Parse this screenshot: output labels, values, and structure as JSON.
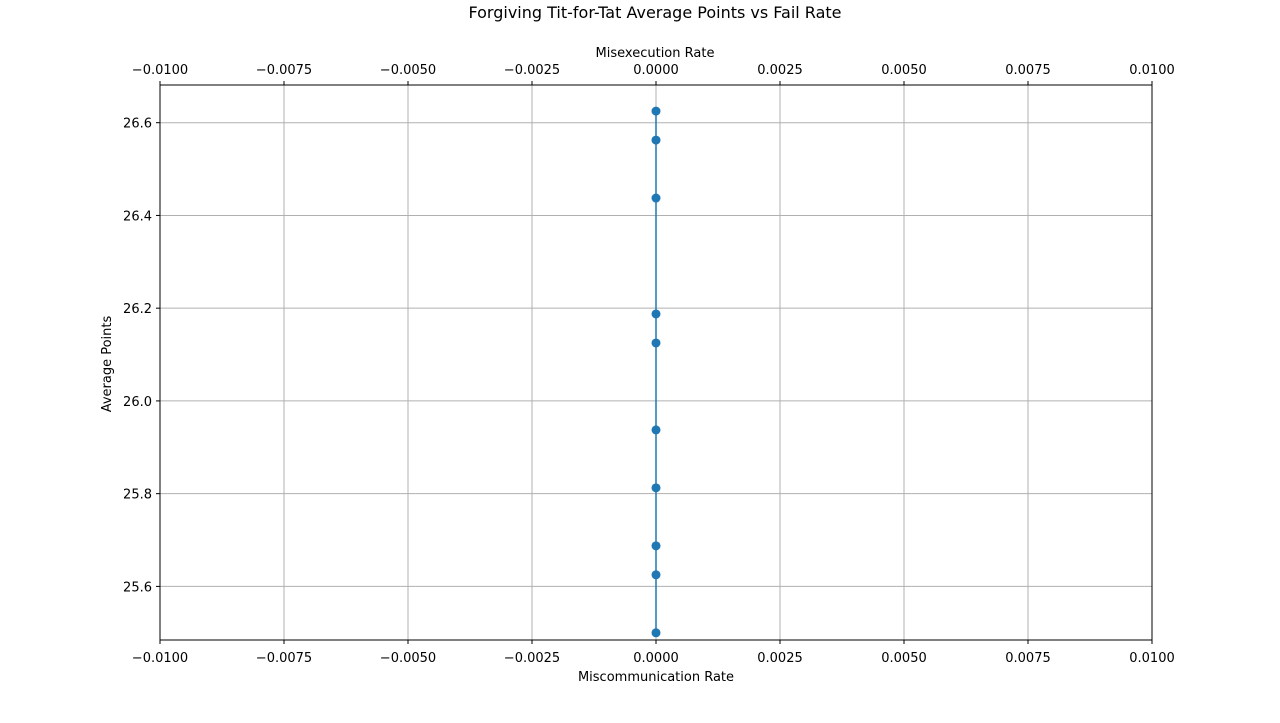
{
  "chart_data": {
    "type": "scatter",
    "title": "Forgiving Tit-for-Tat Average Points vs Fail Rate",
    "xlabel": "Miscommunication Rate",
    "x2label": "Misexecution Rate",
    "ylabel": "Average Points",
    "xlim": [
      -0.01,
      0.01
    ],
    "ylim": [
      25.4844,
      26.6813
    ],
    "xticks": [
      -0.01,
      -0.0075,
      -0.005,
      -0.0025,
      0.0,
      0.0025,
      0.005,
      0.0075,
      0.01
    ],
    "xtick_labels": [
      "−0.0100",
      "−0.0075",
      "−0.0050",
      "−0.0025",
      "0.0000",
      "0.0025",
      "0.0050",
      "0.0075",
      "0.0100"
    ],
    "yticks": [
      25.6,
      25.8,
      26.0,
      26.2,
      26.4,
      26.6
    ],
    "ytick_labels": [
      "25.6",
      "25.8",
      "26.0",
      "26.2",
      "26.4",
      "26.6"
    ],
    "grid": true,
    "series": [
      {
        "name": "Average Points",
        "x": [
          0,
          0,
          0,
          0,
          0,
          0,
          0,
          0,
          0,
          0
        ],
        "y": [
          25.5,
          25.625,
          25.6875,
          25.8125,
          25.9375,
          26.125,
          26.1875,
          26.4375,
          26.5625,
          26.625
        ]
      }
    ],
    "colors": {
      "series": "#1f77b4",
      "grid": "#b0b0b0",
      "axis": "#000000"
    }
  }
}
